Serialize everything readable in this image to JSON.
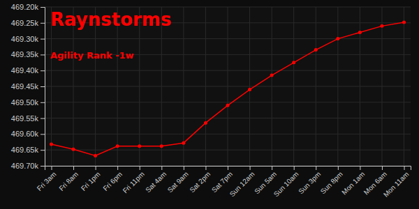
{
  "chart_data": {
    "type": "line",
    "title": "Raynstorms",
    "subtitle": "Agility Rank -1w",
    "categories": [
      "Fri 3am",
      "Fri 8am",
      "Fri 1pm",
      "Fri 6pm",
      "Fri 11pm",
      "Sat 4am",
      "Sat 9am",
      "Sat 2pm",
      "Sat 7pm",
      "Sun 12am",
      "Sun 5am",
      "Sun 10am",
      "Sun 3pm",
      "Sun 8pm",
      "Mon 1am",
      "Mon 6am",
      "Mon 11am"
    ],
    "values": [
      469632,
      469648,
      469668,
      469638,
      469638,
      469638,
      469628,
      469565,
      469510,
      469460,
      469415,
      469375,
      469335,
      469300,
      469280,
      469260,
      469248
    ],
    "color": "#ff0000",
    "marker": "circle",
    "ylim": [
      469700,
      469200
    ],
    "yticks": [
      {
        "value": 469200,
        "label": "469.20k"
      },
      {
        "value": 469250,
        "label": "469.25k"
      },
      {
        "value": 469300,
        "label": "469.30k"
      },
      {
        "value": 469350,
        "label": "469.35k"
      },
      {
        "value": 469400,
        "label": "469.40k"
      },
      {
        "value": 469450,
        "label": "469.45k"
      },
      {
        "value": 469500,
        "label": "469.50k"
      },
      {
        "value": 469550,
        "label": "469.55k"
      },
      {
        "value": 469600,
        "label": "469.60k"
      },
      {
        "value": 469650,
        "label": "469.65k"
      },
      {
        "value": 469700,
        "label": "469.70k"
      }
    ],
    "grid": true
  }
}
